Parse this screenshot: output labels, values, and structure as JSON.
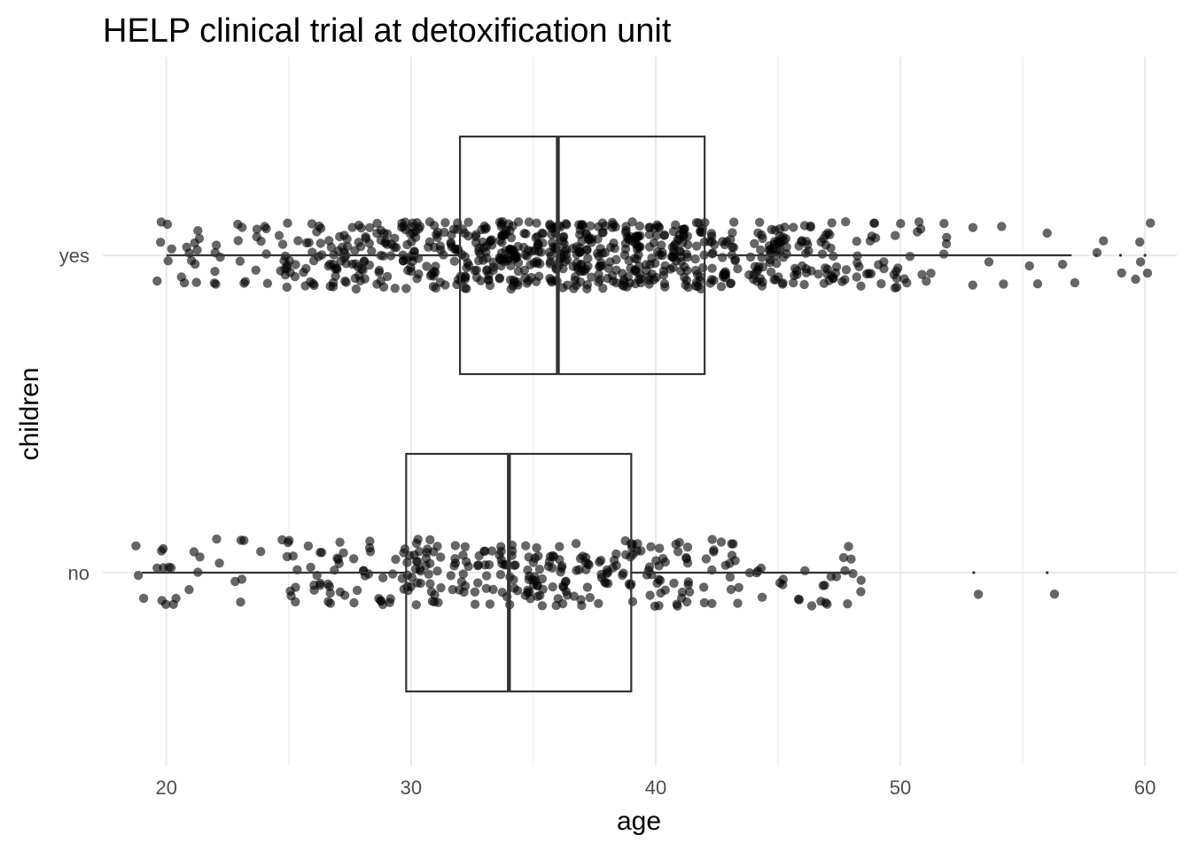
{
  "chart_data": {
    "type": "boxplot",
    "title": "HELP clinical trial at detoxification unit",
    "xlabel": "age",
    "ylabel": "children",
    "xlim": [
      17.4,
      61.3
    ],
    "x_ticks": [
      20,
      30,
      40,
      50,
      60
    ],
    "x_minor_ticks": [
      25,
      35,
      45,
      55
    ],
    "categories": [
      "no",
      "yes"
    ],
    "grid": true,
    "legend": "none",
    "point_color": "#000000",
    "box_color": "#333333",
    "grid_color": "#ebebeb",
    "jitter": {
      "no": {
        "count": 340,
        "min": 19,
        "max": 48,
        "mean": 34.5,
        "sd": 6.5,
        "extra": [
          53,
          56
        ]
      },
      "yes": {
        "count": 800,
        "min": 20,
        "max": 60,
        "mean": 37.0,
        "sd": 7.5
      }
    },
    "series": [
      {
        "category": "yes",
        "min": 20,
        "q1": 32,
        "median": 36,
        "q3": 42,
        "max": 57,
        "outliers": [
          58,
          59,
          60
        ]
      },
      {
        "category": "no",
        "min": 19,
        "q1": 29.8,
        "median": 34,
        "q3": 39,
        "max": 48,
        "outliers": [
          53,
          56
        ]
      }
    ]
  }
}
